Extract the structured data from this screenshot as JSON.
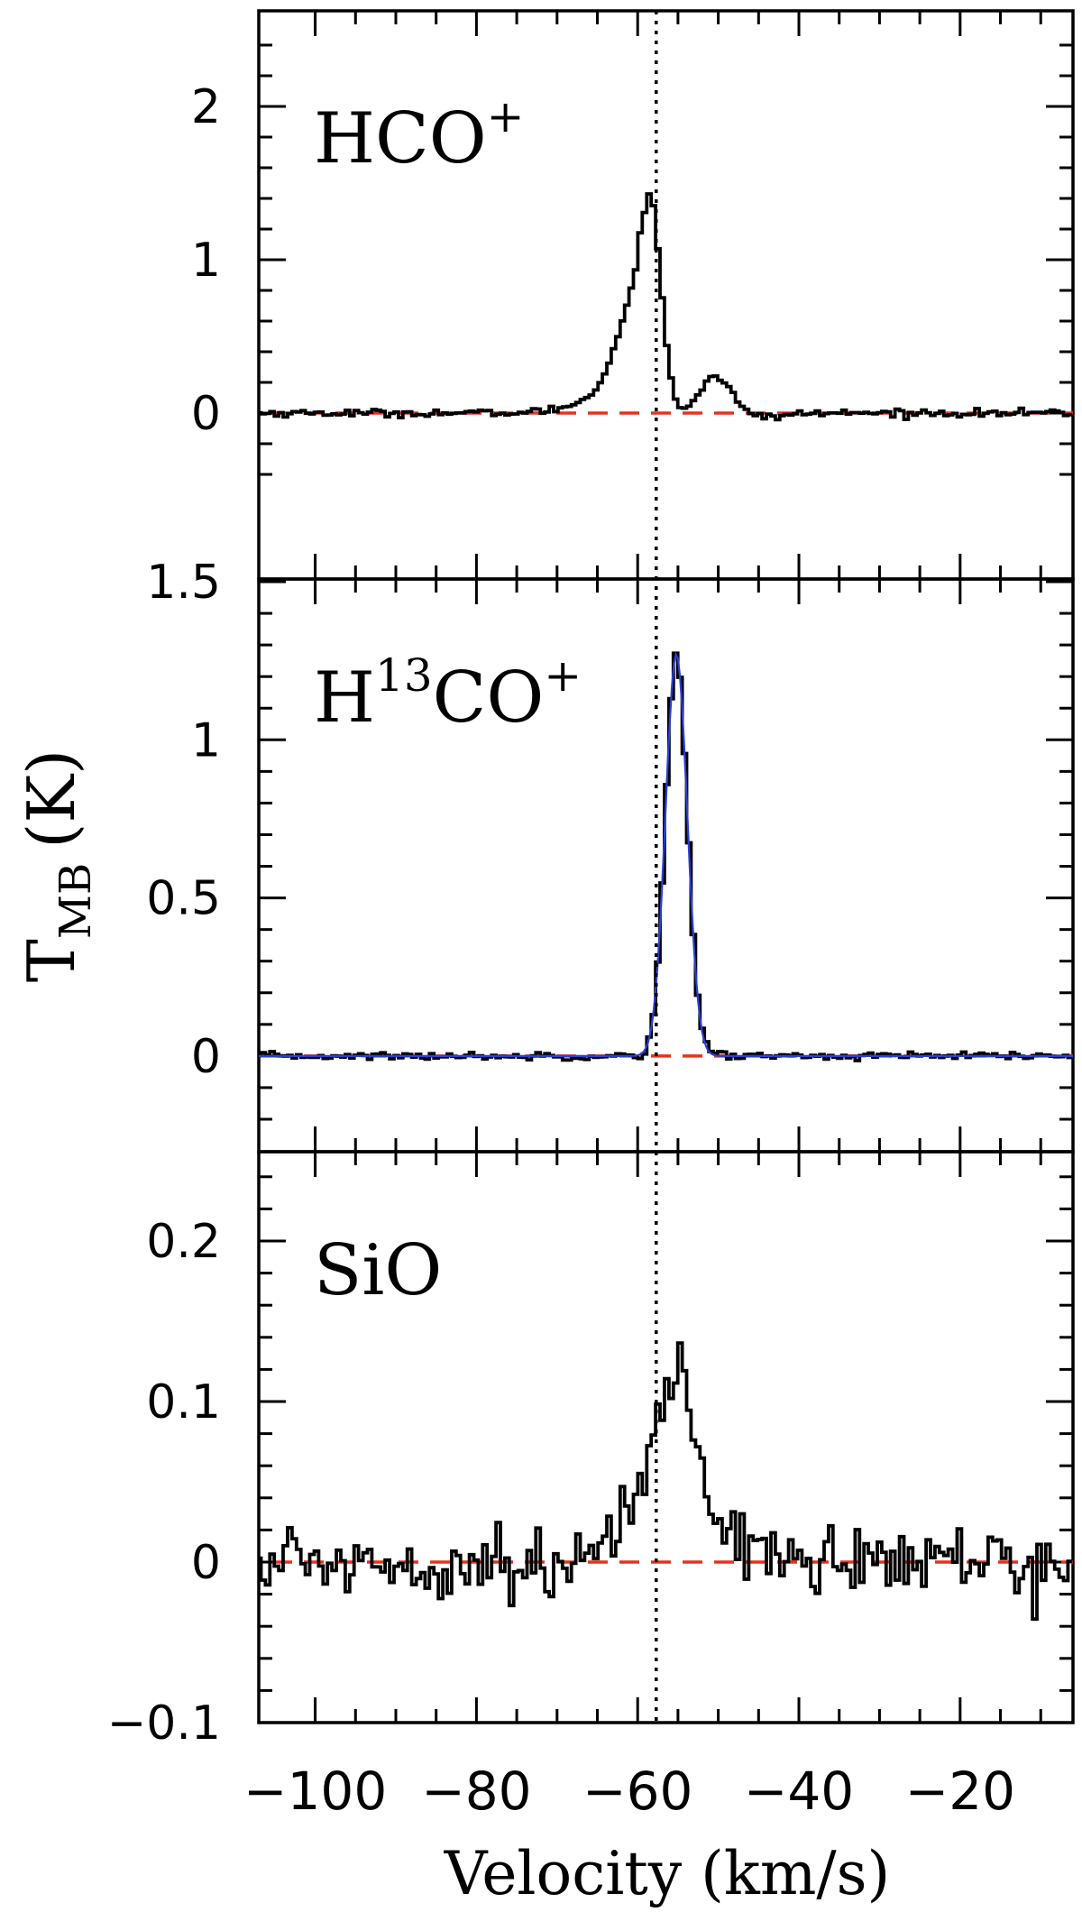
{
  "chart_data": {
    "type": "line",
    "xlabel": "Velocity (km/s)",
    "ylabel": "T_MB (K)",
    "ylabel_main": "T",
    "ylabel_sub": "MB",
    "ylabel_unit": "(K)",
    "xlim": [
      -107,
      -6
    ],
    "xticks": [
      -100,
      -80,
      -60,
      -40,
      -20
    ],
    "xtick_labels": [
      "−100",
      "−80",
      "−60",
      "−40",
      "−20"
    ],
    "vlsr_marker": -57.7,
    "colors": {
      "spectrum": "#000000",
      "baseline": "#e8321e",
      "fit": "#2a3fd6",
      "marker": "#000000"
    },
    "panels": [
      {
        "label_main": "HCO",
        "label_sup_after": "+",
        "ylim": [
          -0.5,
          2.5
        ],
        "yticks": [
          0,
          1,
          2
        ],
        "ytick_labels": [
          "0",
          "1",
          "2"
        ],
        "noise": 0.012,
        "components": [
          {
            "v": -58.1,
            "amp": 1.05,
            "sigma": 1.3
          },
          {
            "v": -60.2,
            "amp": 0.65,
            "sigma": 2.4
          },
          {
            "v": -64.0,
            "amp": 0.09,
            "sigma": 4.0
          },
          {
            "v": -56.6,
            "amp": -0.35,
            "sigma": 1.3
          },
          {
            "v": -56.0,
            "amp": 0.15,
            "sigma": 0.9
          },
          {
            "v": -50.3,
            "amp": 0.25,
            "sigma": 1.9
          },
          {
            "v": -45.0,
            "amp": -0.025,
            "sigma": 3.0
          }
        ],
        "has_fit": false
      },
      {
        "label_main": "H",
        "label_sup_mid": "13",
        "label_rest": "CO",
        "label_sup_after": "+",
        "ylim": [
          -0.2,
          1.5
        ],
        "yticks": [
          0,
          0.5,
          1,
          1.5
        ],
        "ytick_labels": [
          "0",
          "0.5",
          "1",
          "1.5"
        ],
        "noise": 0.006,
        "components": [
          {
            "v": -55.2,
            "amp": 1.27,
            "sigma": 1.35
          },
          {
            "v": -51.0,
            "amp": 0.01,
            "sigma": 2.0
          }
        ],
        "has_fit": true,
        "fit": {
          "v": -55.2,
          "amp": 1.27,
          "sigma": 1.35
        }
      },
      {
        "label_main": "SiO",
        "ylim": [
          -0.1,
          0.25
        ],
        "yticks": [
          -0.1,
          0,
          0.1,
          0.2
        ],
        "ytick_labels": [
          "−0.1",
          "0",
          "0.1",
          "0.2"
        ],
        "noise": 0.011,
        "components": [
          {
            "v": -54.8,
            "amp": 0.09,
            "sigma": 1.8
          },
          {
            "v": -58.5,
            "amp": 0.05,
            "sigma": 2.6
          },
          {
            "v": -51.0,
            "amp": 0.025,
            "sigma": 4.5
          }
        ],
        "has_fit": false
      }
    ]
  }
}
